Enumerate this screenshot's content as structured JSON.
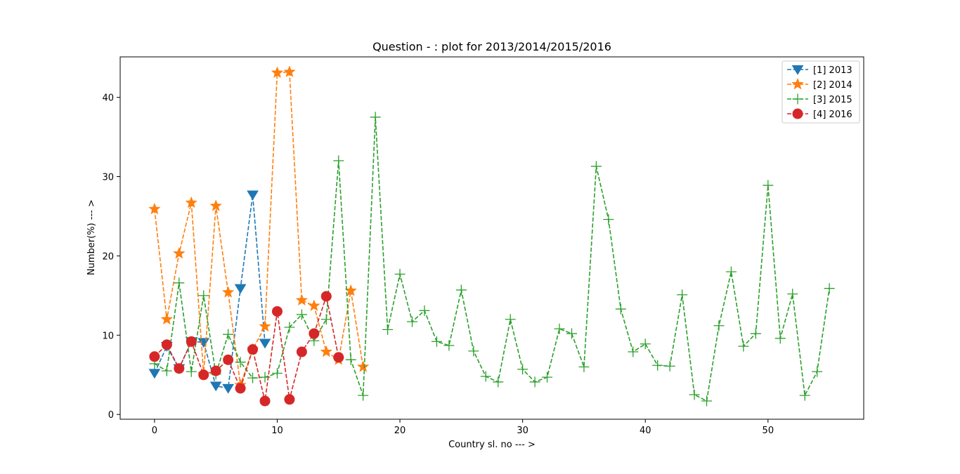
{
  "chart_data": {
    "type": "line",
    "title": "Question - : plot for 2013/2014/2015/2016",
    "xlabel": "Country sl. no --- >",
    "ylabel": "Number(%) --- >",
    "xlim": [
      -2.8,
      57.8
    ],
    "ylim": [
      -0.6,
      45.1
    ],
    "xticks": [
      0,
      10,
      20,
      30,
      40,
      50
    ],
    "yticks": [
      0,
      10,
      20,
      30,
      40
    ],
    "grid": false,
    "legend_position": "top-right",
    "series": [
      {
        "name": "[1] 2013",
        "color": "#1f77b4",
        "marker": "triangle-down",
        "x": [
          0,
          1,
          2,
          3,
          4,
          5,
          6,
          7,
          8,
          9
        ],
        "values": [
          5.2,
          8.6,
          5.8,
          9.2,
          9.1,
          3.6,
          3.3,
          15.9,
          27.7,
          9.0
        ]
      },
      {
        "name": "[2] 2014",
        "color": "#ff7f0e",
        "marker": "star",
        "x": [
          0,
          1,
          2,
          3,
          4,
          5,
          6,
          7,
          8,
          9,
          10,
          11,
          12,
          13,
          14,
          15,
          16,
          17
        ],
        "values": [
          25.9,
          12.0,
          20.3,
          26.7,
          5.1,
          26.3,
          15.4,
          3.7,
          8.2,
          11.1,
          43.1,
          43.2,
          14.4,
          13.7,
          7.9,
          6.9,
          15.6,
          6.0
        ]
      },
      {
        "name": "[3] 2015",
        "color": "#2ca02c",
        "marker": "plus",
        "x": [
          0,
          1,
          2,
          3,
          4,
          5,
          6,
          7,
          8,
          9,
          10,
          11,
          12,
          13,
          14,
          15,
          16,
          17,
          18,
          19,
          20,
          21,
          22,
          23,
          24,
          25,
          26,
          27,
          28,
          29,
          30,
          31,
          32,
          33,
          34,
          35,
          36,
          37,
          38,
          39,
          40,
          41,
          42,
          43,
          44,
          45,
          46,
          47,
          48,
          49,
          50,
          51,
          52,
          53,
          54,
          55
        ],
        "values": [
          6.4,
          5.5,
          16.6,
          5.4,
          15.0,
          5.1,
          10.1,
          6.6,
          4.6,
          4.7,
          5.2,
          11.0,
          12.6,
          9.3,
          12.0,
          32.0,
          6.9,
          2.4,
          37.5,
          10.7,
          17.7,
          11.7,
          13.1,
          9.2,
          8.7,
          15.7,
          8.0,
          4.8,
          4.1,
          12.0,
          5.7,
          4.1,
          4.7,
          10.8,
          10.2,
          6.0,
          31.3,
          24.6,
          13.3,
          7.9,
          8.9,
          6.2,
          6.1,
          15.1,
          2.5,
          1.7,
          11.2,
          18.0,
          8.6,
          10.2,
          28.9,
          9.6,
          15.2,
          2.4,
          5.4,
          15.9
        ]
      },
      {
        "name": "[4] 2016",
        "color": "#d62728",
        "marker": "circle",
        "x": [
          0,
          1,
          2,
          3,
          4,
          5,
          6,
          7,
          8,
          9,
          10,
          11,
          12,
          13,
          14,
          15
        ],
        "values": [
          7.3,
          8.8,
          5.8,
          9.2,
          5.0,
          5.5,
          6.9,
          3.3,
          8.2,
          1.7,
          13.0,
          1.9,
          7.9,
          10.2,
          14.9,
          7.2
        ]
      }
    ]
  }
}
